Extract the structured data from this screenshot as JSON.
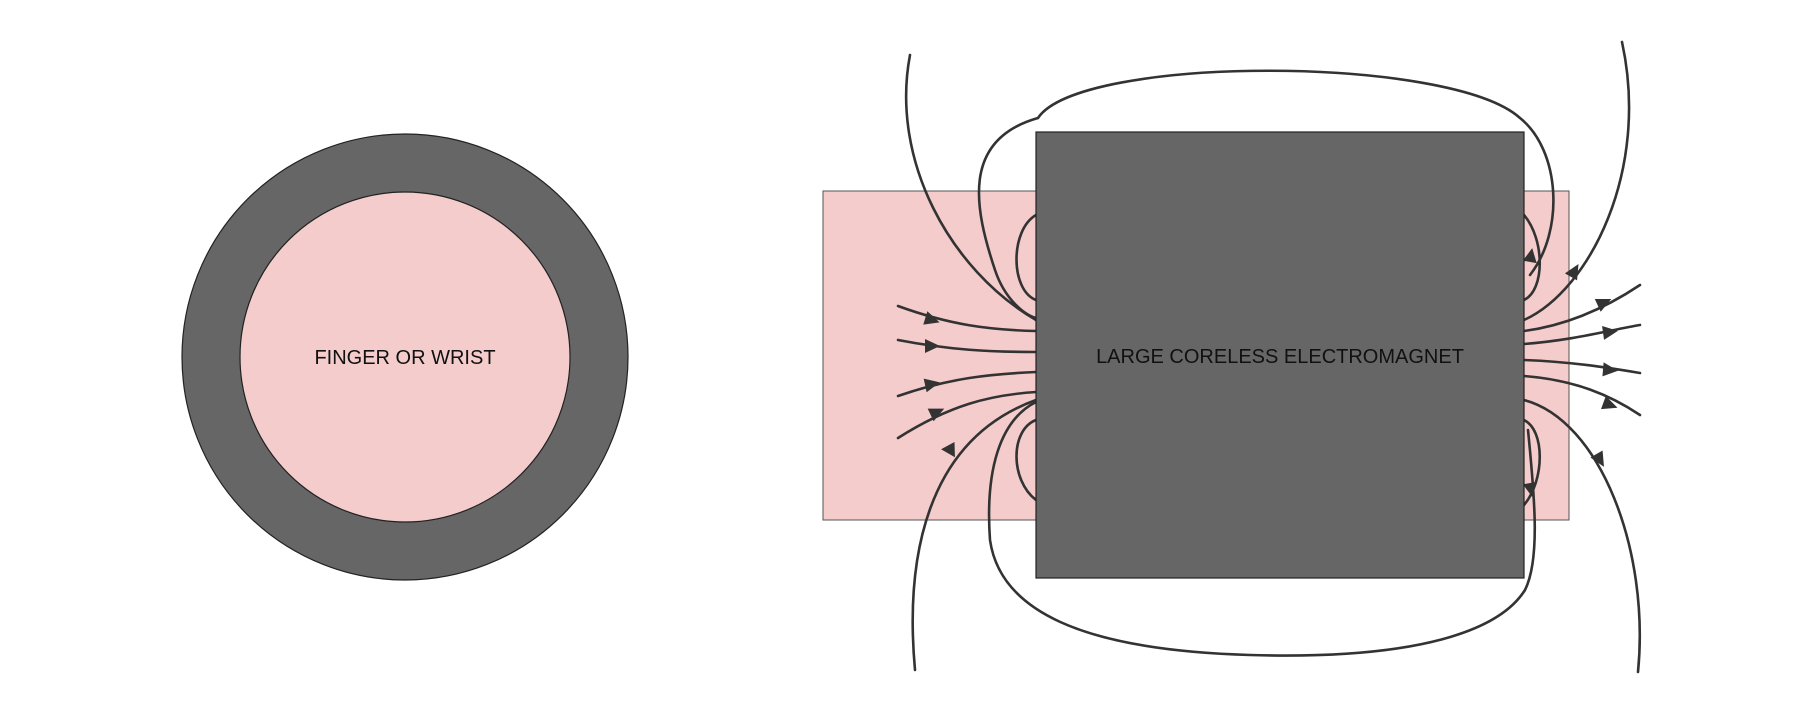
{
  "diagram": {
    "left_label": "FINGER OR WRIST",
    "right_label": "LARGE CORELESS ELECTROMAGNET"
  },
  "colors": {
    "background": "#ffffff",
    "skin": "#f4cccc",
    "coil": "#666666",
    "outline": "#222222",
    "field_line": "#333333"
  }
}
